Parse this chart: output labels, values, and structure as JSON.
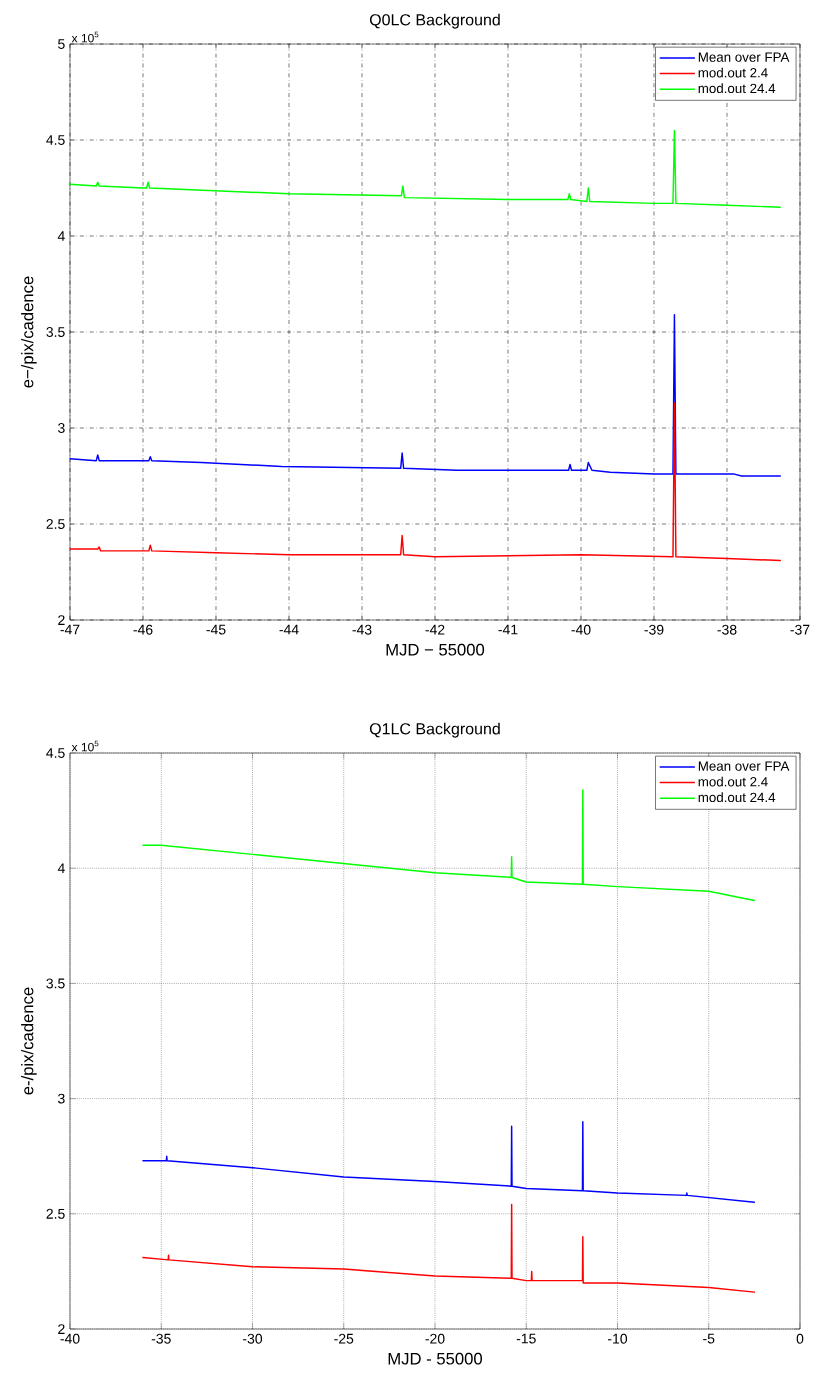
{
  "chart_data": [
    {
      "type": "line",
      "title": "Q0LC Background",
      "xlabel": "MJD − 55000",
      "ylabel": "e−/pix/cadence",
      "annotations": [
        "x 10$^{5}$"
      ],
      "xlim": [
        -47,
        -37
      ],
      "xticks": [
        -47,
        -46,
        -45,
        -44,
        -43,
        -42,
        -41,
        -40,
        -39,
        -38,
        -37
      ],
      "ylim": [
        2,
        5
      ],
      "yticks": [
        2,
        2.5,
        3,
        3.5,
        4,
        4.5,
        5
      ],
      "grid": true,
      "legend": "top right",
      "series": [
        {
          "name": "Mean over FPA",
          "color": "#0000ff",
          "x": [
            -47,
            -46.64,
            -46.62,
            -46.6,
            -46,
            -45.92,
            -45.9,
            -45.88,
            -45.2,
            -44.1,
            -42.47,
            -42.45,
            -42.43,
            -41.7,
            -40.17,
            -40.15,
            -40.13,
            -39.92,
            -39.9,
            -39.85,
            -39.6,
            -39.0,
            -38.74,
            -38.72,
            -38.7,
            -37.9,
            -37.8,
            -37.27
          ],
          "values": [
            2.84,
            2.83,
            2.86,
            2.83,
            2.83,
            2.83,
            2.85,
            2.83,
            2.82,
            2.8,
            2.79,
            2.87,
            2.79,
            2.78,
            2.78,
            2.81,
            2.78,
            2.78,
            2.82,
            2.78,
            2.77,
            2.76,
            2.76,
            3.59,
            2.76,
            2.76,
            2.75,
            2.75
          ]
        },
        {
          "name": "mod.out 2.4",
          "color": "#ff0000",
          "x": [
            -47,
            -46.62,
            -46.6,
            -46.58,
            -45.92,
            -45.9,
            -45.88,
            -45,
            -44,
            -42.47,
            -42.45,
            -42.43,
            -42,
            -40,
            -38.74,
            -38.72,
            -38.7,
            -38,
            -37.27
          ],
          "values": [
            2.37,
            2.37,
            2.38,
            2.36,
            2.36,
            2.39,
            2.36,
            2.35,
            2.34,
            2.34,
            2.44,
            2.34,
            2.33,
            2.34,
            2.33,
            3.13,
            2.33,
            2.32,
            2.31
          ]
        },
        {
          "name": "mod.out 24.4",
          "color": "#00ff00",
          "x": [
            -47,
            -46.64,
            -46.62,
            -46.6,
            -46,
            -45.95,
            -45.93,
            -45.91,
            -44,
            -42.46,
            -42.44,
            -42.42,
            -41,
            -40.18,
            -40.16,
            -40.14,
            -39.92,
            -39.9,
            -39.88,
            -39,
            -38.74,
            -38.72,
            -38.7,
            -38,
            -37.27
          ],
          "values": [
            4.27,
            4.26,
            4.28,
            4.26,
            4.25,
            4.25,
            4.28,
            4.25,
            4.22,
            4.21,
            4.26,
            4.2,
            4.19,
            4.19,
            4.22,
            4.19,
            4.18,
            4.25,
            4.18,
            4.17,
            4.17,
            4.55,
            4.17,
            4.16,
            4.15
          ]
        }
      ]
    },
    {
      "type": "line",
      "title": "Q1LC Background",
      "xlabel": "MJD - 55000",
      "ylabel": "e-/pix/cadence",
      "annotations": [
        "x 10$^{5}$"
      ],
      "xlim": [
        -40,
        0
      ],
      "xticks": [
        -40,
        -35,
        -30,
        -25,
        -20,
        -15,
        -10,
        -5,
        0
      ],
      "ylim": [
        2,
        4.5
      ],
      "yticks": [
        2,
        2.5,
        3,
        3.5,
        4,
        4.5
      ],
      "grid": true,
      "legend": "top right",
      "series": [
        {
          "name": "Mean over FPA",
          "color": "#0000ff",
          "x": [
            -36,
            -34.72,
            -34.7,
            -34.68,
            -30,
            -25,
            -20,
            -15.82,
            -15.8,
            -15.78,
            -15,
            -11.92,
            -11.9,
            -11.88,
            -10,
            -6.22,
            -6.2,
            -6.18,
            -2.5
          ],
          "values": [
            2.73,
            2.73,
            2.75,
            2.73,
            2.7,
            2.66,
            2.64,
            2.62,
            2.88,
            2.62,
            2.61,
            2.6,
            2.9,
            2.6,
            2.59,
            2.58,
            2.59,
            2.58,
            2.55
          ]
        },
        {
          "name": "mod.out 2.4",
          "color": "#ff0000",
          "x": [
            -36,
            -34.62,
            -34.6,
            -34.58,
            -30,
            -25,
            -20,
            -15.82,
            -15.8,
            -15.78,
            -15,
            -14.72,
            -14.7,
            -14.68,
            -11.92,
            -11.9,
            -11.88,
            -10,
            -5,
            -2.5
          ],
          "values": [
            2.31,
            2.3,
            2.32,
            2.3,
            2.27,
            2.26,
            2.23,
            2.22,
            2.54,
            2.22,
            2.21,
            2.21,
            2.25,
            2.21,
            2.21,
            2.4,
            2.2,
            2.2,
            2.18,
            2.16
          ]
        },
        {
          "name": "mod.out 24.4",
          "color": "#00ff00",
          "x": [
            -36,
            -35,
            -30,
            -25,
            -20,
            -15.82,
            -15.8,
            -15.78,
            -15,
            -11.92,
            -11.9,
            -11.88,
            -10,
            -5,
            -2.5
          ],
          "values": [
            4.1,
            4.1,
            4.06,
            4.02,
            3.98,
            3.96,
            4.05,
            3.96,
            3.94,
            3.93,
            4.34,
            3.93,
            3.92,
            3.9,
            3.86
          ]
        }
      ]
    }
  ]
}
